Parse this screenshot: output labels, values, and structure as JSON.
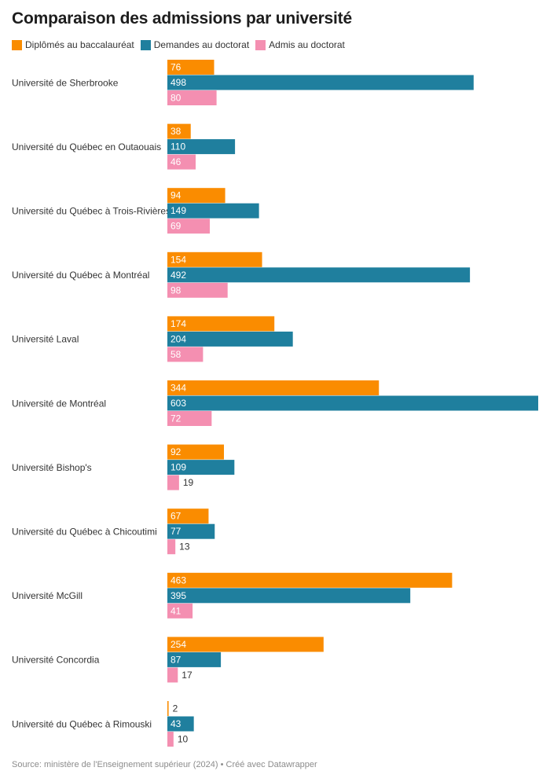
{
  "chart_data": {
    "type": "bar",
    "orientation": "horizontal",
    "title": "Comparaison des admissions par université",
    "categories": [
      "Université de Sherbrooke",
      "Université du Québec en Outaouais",
      "Université du Québec à Trois-Rivières",
      "Université du Québec à Montréal",
      "Université Laval",
      "Université de Montréal",
      "Université Bishop's",
      "Université du Québec à Chicoutimi",
      "Université McGill",
      "Université Concordia",
      "Université du Québec à Rimouski"
    ],
    "series": [
      {
        "name": "Diplômés au baccalauréat",
        "color": "#fa8c00",
        "values": [
          76,
          38,
          94,
          154,
          174,
          344,
          92,
          67,
          463,
          254,
          2
        ]
      },
      {
        "name": "Demandes au doctorat",
        "color": "#1f7f9e",
        "values": [
          498,
          110,
          149,
          492,
          204,
          603,
          109,
          77,
          395,
          87,
          43
        ]
      },
      {
        "name": "Admis au doctorat",
        "color": "#f48fb1",
        "values": [
          80,
          46,
          69,
          98,
          58,
          72,
          19,
          13,
          41,
          17,
          10
        ]
      }
    ],
    "xlim": [
      0,
      603
    ],
    "grid": false,
    "legend_position": "top-left",
    "value_labels": true
  },
  "footer": {
    "source": "Source: ministère de l'Enseignement supérieur (2024) • Créé avec Datawrapper"
  }
}
